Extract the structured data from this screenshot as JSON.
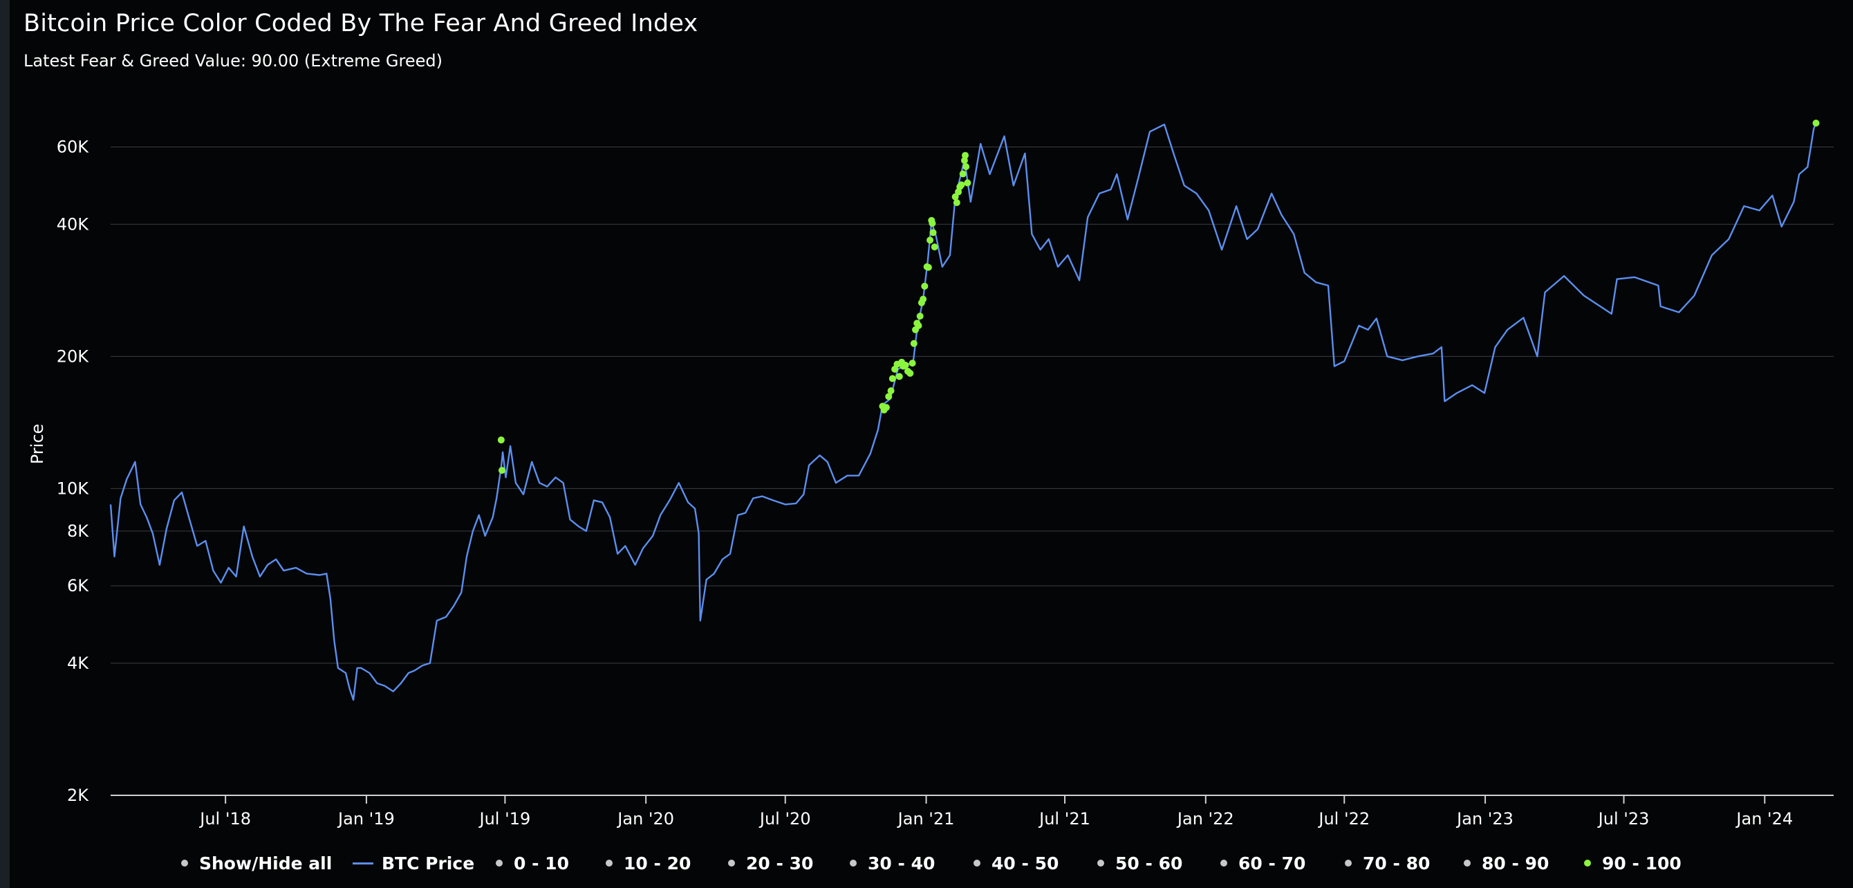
{
  "chart_data": {
    "type": "line",
    "title": "Bitcoin Price Color Coded By The Fear And Greed Index",
    "subtitle": "Latest Fear & Greed Value: 90.00 (Extreme Greed)",
    "xlabel": "",
    "ylabel": "Price",
    "y_scale": "log",
    "ylim": [
      2000,
      70000
    ],
    "xlim": [
      "2018-02-01",
      "2024-03-31"
    ],
    "y_ticks": [
      {
        "value": 2000,
        "label": "2K"
      },
      {
        "value": 4000,
        "label": "4K"
      },
      {
        "value": 6000,
        "label": "6K"
      },
      {
        "value": 8000,
        "label": "8K"
      },
      {
        "value": 10000,
        "label": "10K"
      },
      {
        "value": 20000,
        "label": "20K"
      },
      {
        "value": 40000,
        "label": "40K"
      },
      {
        "value": 60000,
        "label": "60K"
      }
    ],
    "x_ticks": [
      {
        "date": "2018-07-01",
        "label": "Jul '18"
      },
      {
        "date": "2019-01-01",
        "label": "Jan '19"
      },
      {
        "date": "2019-07-01",
        "label": "Jul '19"
      },
      {
        "date": "2020-01-01",
        "label": "Jan '20"
      },
      {
        "date": "2020-07-01",
        "label": "Jul '20"
      },
      {
        "date": "2021-01-01",
        "label": "Jan '21"
      },
      {
        "date": "2021-07-01",
        "label": "Jul '21"
      },
      {
        "date": "2022-01-01",
        "label": "Jan '22"
      },
      {
        "date": "2022-07-01",
        "label": "Jul '22"
      },
      {
        "date": "2023-01-01",
        "label": "Jan '23"
      },
      {
        "date": "2023-07-01",
        "label": "Jul '23"
      },
      {
        "date": "2024-01-01",
        "label": "Jan '24"
      }
    ],
    "grid": true,
    "legend_position": "bottom",
    "series": [
      {
        "name": "BTC Price",
        "color": "#5b8ff0",
        "points": [
          [
            "2018-02-01",
            9200
          ],
          [
            "2018-02-06",
            7000
          ],
          [
            "2018-02-14",
            9500
          ],
          [
            "2018-02-22",
            10500
          ],
          [
            "2018-03-05",
            11500
          ],
          [
            "2018-03-12",
            9200
          ],
          [
            "2018-03-20",
            8600
          ],
          [
            "2018-03-28",
            7900
          ],
          [
            "2018-04-06",
            6700
          ],
          [
            "2018-04-15",
            8100
          ],
          [
            "2018-04-25",
            9400
          ],
          [
            "2018-05-05",
            9800
          ],
          [
            "2018-05-15",
            8500
          ],
          [
            "2018-05-25",
            7400
          ],
          [
            "2018-06-05",
            7600
          ],
          [
            "2018-06-15",
            6500
          ],
          [
            "2018-06-25",
            6100
          ],
          [
            "2018-07-05",
            6600
          ],
          [
            "2018-07-15",
            6300
          ],
          [
            "2018-07-25",
            8200
          ],
          [
            "2018-08-05",
            7000
          ],
          [
            "2018-08-15",
            6300
          ],
          [
            "2018-08-25",
            6700
          ],
          [
            "2018-09-05",
            6900
          ],
          [
            "2018-09-15",
            6500
          ],
          [
            "2018-10-01",
            6600
          ],
          [
            "2018-10-15",
            6400
          ],
          [
            "2018-11-01",
            6350
          ],
          [
            "2018-11-10",
            6400
          ],
          [
            "2018-11-15",
            5600
          ],
          [
            "2018-11-20",
            4500
          ],
          [
            "2018-11-25",
            3900
          ],
          [
            "2018-12-05",
            3800
          ],
          [
            "2018-12-10",
            3500
          ],
          [
            "2018-12-15",
            3300
          ],
          [
            "2018-12-20",
            3900
          ],
          [
            "2018-12-25",
            3900
          ],
          [
            "2019-01-05",
            3800
          ],
          [
            "2019-01-15",
            3600
          ],
          [
            "2019-01-25",
            3550
          ],
          [
            "2019-02-05",
            3450
          ],
          [
            "2019-02-15",
            3600
          ],
          [
            "2019-02-25",
            3800
          ],
          [
            "2019-03-05",
            3850
          ],
          [
            "2019-03-15",
            3950
          ],
          [
            "2019-03-25",
            4000
          ],
          [
            "2019-04-03",
            5000
          ],
          [
            "2019-04-15",
            5100
          ],
          [
            "2019-04-25",
            5400
          ],
          [
            "2019-05-05",
            5800
          ],
          [
            "2019-05-12",
            7000
          ],
          [
            "2019-05-20",
            8000
          ],
          [
            "2019-05-28",
            8700
          ],
          [
            "2019-06-05",
            7800
          ],
          [
            "2019-06-15",
            8600
          ],
          [
            "2019-06-20",
            9500
          ],
          [
            "2019-06-26",
            11200
          ],
          [
            "2019-06-28",
            12100
          ],
          [
            "2019-07-02",
            10600
          ],
          [
            "2019-07-08",
            12500
          ],
          [
            "2019-07-15",
            10300
          ],
          [
            "2019-07-25",
            9700
          ],
          [
            "2019-08-05",
            11500
          ],
          [
            "2019-08-15",
            10300
          ],
          [
            "2019-08-25",
            10100
          ],
          [
            "2019-09-05",
            10600
          ],
          [
            "2019-09-15",
            10300
          ],
          [
            "2019-09-24",
            8500
          ],
          [
            "2019-10-05",
            8200
          ],
          [
            "2019-10-15",
            8000
          ],
          [
            "2019-10-25",
            9400
          ],
          [
            "2019-11-05",
            9300
          ],
          [
            "2019-11-15",
            8600
          ],
          [
            "2019-11-25",
            7100
          ],
          [
            "2019-12-05",
            7400
          ],
          [
            "2019-12-18",
            6700
          ],
          [
            "2019-12-28",
            7300
          ],
          [
            "2020-01-10",
            7800
          ],
          [
            "2020-01-20",
            8700
          ],
          [
            "2020-02-01",
            9400
          ],
          [
            "2020-02-13",
            10300
          ],
          [
            "2020-02-25",
            9300
          ],
          [
            "2020-03-05",
            9000
          ],
          [
            "2020-03-10",
            7900
          ],
          [
            "2020-03-12",
            5000
          ],
          [
            "2020-03-20",
            6200
          ],
          [
            "2020-03-30",
            6400
          ],
          [
            "2020-04-10",
            6900
          ],
          [
            "2020-04-20",
            7100
          ],
          [
            "2020-04-30",
            8700
          ],
          [
            "2020-05-10",
            8800
          ],
          [
            "2020-05-20",
            9500
          ],
          [
            "2020-06-01",
            9600
          ],
          [
            "2020-06-15",
            9400
          ],
          [
            "2020-07-01",
            9200
          ],
          [
            "2020-07-15",
            9250
          ],
          [
            "2020-07-25",
            9700
          ],
          [
            "2020-08-01",
            11300
          ],
          [
            "2020-08-15",
            11900
          ],
          [
            "2020-08-25",
            11500
          ],
          [
            "2020-09-05",
            10300
          ],
          [
            "2020-09-20",
            10700
          ],
          [
            "2020-10-05",
            10700
          ],
          [
            "2020-10-20",
            12000
          ],
          [
            "2020-10-30",
            13600
          ],
          [
            "2020-11-05",
            15500
          ],
          [
            "2020-11-15",
            16000
          ],
          [
            "2020-11-25",
            18700
          ],
          [
            "2020-12-05",
            19100
          ],
          [
            "2020-12-15",
            19400
          ],
          [
            "2020-12-20",
            23000
          ],
          [
            "2020-12-28",
            27000
          ],
          [
            "2021-01-03",
            33000
          ],
          [
            "2021-01-08",
            40500
          ],
          [
            "2021-01-14",
            37500
          ],
          [
            "2021-01-22",
            32000
          ],
          [
            "2021-02-01",
            34000
          ],
          [
            "2021-02-08",
            46000
          ],
          [
            "2021-02-20",
            56000
          ],
          [
            "2021-02-28",
            45000
          ],
          [
            "2021-03-13",
            61000
          ],
          [
            "2021-03-25",
            52000
          ],
          [
            "2021-04-13",
            63500
          ],
          [
            "2021-04-25",
            49000
          ],
          [
            "2021-05-10",
            58000
          ],
          [
            "2021-05-19",
            38000
          ],
          [
            "2021-05-30",
            35000
          ],
          [
            "2021-06-10",
            37000
          ],
          [
            "2021-06-22",
            32000
          ],
          [
            "2021-07-05",
            34000
          ],
          [
            "2021-07-20",
            29800
          ],
          [
            "2021-07-31",
            41500
          ],
          [
            "2021-08-15",
            47000
          ],
          [
            "2021-08-30",
            48000
          ],
          [
            "2021-09-07",
            52000
          ],
          [
            "2021-09-21",
            41000
          ],
          [
            "2021-10-05",
            51000
          ],
          [
            "2021-10-20",
            65000
          ],
          [
            "2021-11-08",
            67500
          ],
          [
            "2021-11-20",
            58000
          ],
          [
            "2021-12-04",
            49000
          ],
          [
            "2021-12-20",
            47000
          ],
          [
            "2022-01-05",
            43000
          ],
          [
            "2022-01-22",
            35000
          ],
          [
            "2022-02-10",
            44000
          ],
          [
            "2022-02-24",
            37000
          ],
          [
            "2022-03-10",
            39000
          ],
          [
            "2022-03-28",
            47000
          ],
          [
            "2022-04-10",
            42000
          ],
          [
            "2022-04-26",
            38000
          ],
          [
            "2022-05-10",
            31000
          ],
          [
            "2022-05-25",
            29500
          ],
          [
            "2022-06-10",
            29000
          ],
          [
            "2022-06-18",
            19000
          ],
          [
            "2022-07-01",
            19500
          ],
          [
            "2022-07-20",
            23500
          ],
          [
            "2022-08-01",
            23000
          ],
          [
            "2022-08-12",
            24400
          ],
          [
            "2022-08-26",
            20000
          ],
          [
            "2022-09-15",
            19600
          ],
          [
            "2022-10-05",
            20000
          ],
          [
            "2022-10-25",
            20300
          ],
          [
            "2022-11-05",
            21000
          ],
          [
            "2022-11-09",
            15800
          ],
          [
            "2022-11-25",
            16500
          ],
          [
            "2022-12-15",
            17200
          ],
          [
            "2022-12-31",
            16500
          ],
          [
            "2023-01-14",
            21000
          ],
          [
            "2023-01-30",
            23000
          ],
          [
            "2023-02-20",
            24500
          ],
          [
            "2023-03-10",
            20000
          ],
          [
            "2023-03-20",
            28000
          ],
          [
            "2023-04-14",
            30500
          ],
          [
            "2023-05-10",
            27500
          ],
          [
            "2023-06-15",
            25000
          ],
          [
            "2023-06-22",
            30000
          ],
          [
            "2023-07-15",
            30300
          ],
          [
            "2023-08-15",
            29000
          ],
          [
            "2023-08-18",
            26000
          ],
          [
            "2023-09-11",
            25200
          ],
          [
            "2023-10-01",
            27500
          ],
          [
            "2023-10-24",
            34000
          ],
          [
            "2023-11-15",
            37000
          ],
          [
            "2023-12-05",
            44000
          ],
          [
            "2023-12-25",
            43000
          ],
          [
            "2024-01-11",
            46500
          ],
          [
            "2024-01-23",
            39500
          ],
          [
            "2024-02-08",
            45000
          ],
          [
            "2024-02-15",
            52000
          ],
          [
            "2024-02-26",
            54000
          ],
          [
            "2024-03-05",
            66000
          ],
          [
            "2024-03-08",
            68000
          ]
        ]
      },
      {
        "name": "90 - 100",
        "color": "#8bf53e",
        "type": "scatter",
        "points": [
          [
            "2019-06-26",
            12900
          ],
          [
            "2019-06-27",
            11000
          ],
          [
            "2020-11-05",
            15400
          ],
          [
            "2020-11-07",
            15100
          ],
          [
            "2020-11-10",
            15300
          ],
          [
            "2020-11-13",
            16200
          ],
          [
            "2020-11-16",
            16700
          ],
          [
            "2020-11-18",
            17800
          ],
          [
            "2020-11-21",
            18700
          ],
          [
            "2020-11-24",
            19200
          ],
          [
            "2020-11-27",
            18000
          ],
          [
            "2020-11-30",
            19400
          ],
          [
            "2020-12-02",
            19000
          ],
          [
            "2020-12-05",
            19100
          ],
          [
            "2020-12-08",
            18500
          ],
          [
            "2020-12-11",
            18300
          ],
          [
            "2020-12-14",
            19300
          ],
          [
            "2020-12-16",
            21400
          ],
          [
            "2020-12-18",
            23000
          ],
          [
            "2020-12-20",
            23800
          ],
          [
            "2020-12-22",
            23500
          ],
          [
            "2020-12-24",
            24700
          ],
          [
            "2020-12-26",
            26500
          ],
          [
            "2020-12-28",
            27000
          ],
          [
            "2020-12-30",
            28900
          ],
          [
            "2021-01-02",
            32000
          ],
          [
            "2021-01-04",
            31900
          ],
          [
            "2021-01-06",
            36800
          ],
          [
            "2021-01-08",
            40800
          ],
          [
            "2021-01-09",
            40200
          ],
          [
            "2021-01-10",
            38300
          ],
          [
            "2021-01-12",
            35500
          ],
          [
            "2021-02-08",
            46200
          ],
          [
            "2021-02-10",
            44800
          ],
          [
            "2021-02-12",
            47400
          ],
          [
            "2021-02-14",
            48700
          ],
          [
            "2021-02-16",
            49200
          ],
          [
            "2021-02-18",
            52100
          ],
          [
            "2021-02-20",
            55900
          ],
          [
            "2021-02-21",
            57400
          ],
          [
            "2021-02-22",
            54100
          ],
          [
            "2021-02-24",
            49700
          ],
          [
            "2024-03-08",
            68000
          ]
        ]
      }
    ]
  },
  "legend": {
    "items": [
      {
        "label": "Show/Hide all",
        "color": "#c8c8c8",
        "symbol": "dot"
      },
      {
        "label": "BTC Price",
        "color": "#5b8ff0",
        "symbol": "line"
      },
      {
        "label": "0 - 10",
        "color": "#c8c8c8",
        "symbol": "dot"
      },
      {
        "label": "10 - 20",
        "color": "#c8c8c8",
        "symbol": "dot"
      },
      {
        "label": "20 - 30",
        "color": "#c8c8c8",
        "symbol": "dot"
      },
      {
        "label": "30 - 40",
        "color": "#c8c8c8",
        "symbol": "dot"
      },
      {
        "label": "40 - 50",
        "color": "#c8c8c8",
        "symbol": "dot"
      },
      {
        "label": "50 - 60",
        "color": "#c8c8c8",
        "symbol": "dot"
      },
      {
        "label": "60 - 70",
        "color": "#c8c8c8",
        "symbol": "dot"
      },
      {
        "label": "70 - 80",
        "color": "#c8c8c8",
        "symbol": "dot"
      },
      {
        "label": "80 - 90",
        "color": "#c8c8c8",
        "symbol": "dot"
      },
      {
        "label": "90 - 100",
        "color": "#8bf53e",
        "symbol": "dot"
      }
    ]
  },
  "colors": {
    "background": "#040506",
    "grid": "#3a3e44",
    "axis_text": "#ffffff",
    "price_line": "#5b8ff0",
    "extreme_greed": "#8bf53e"
  }
}
